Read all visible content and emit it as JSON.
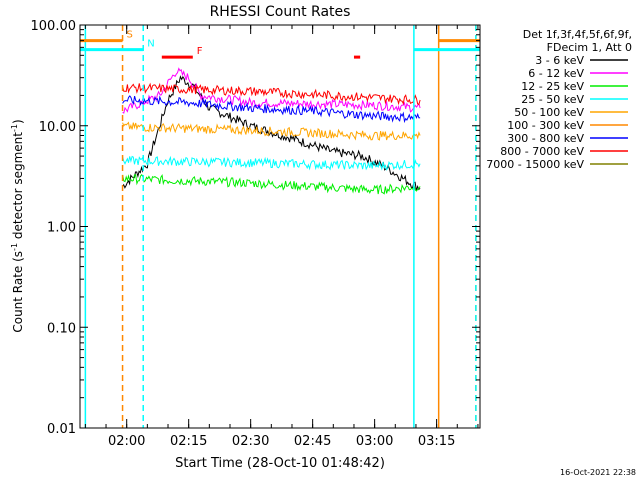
{
  "chart_data": {
    "type": "line",
    "title": "RHESSI Count Rates",
    "xlabel": "Start Time (28-Oct-10 01:48:42)",
    "ylabel_main": "Count Rate (s",
    "ylabel_sup1": "-1",
    "ylabel_mid": " detector segment",
    "ylabel_sup2": "-1",
    "ylabel_end": ")",
    "y_scale": "log",
    "ylim": [
      0.01,
      100
    ],
    "y_ticks": [
      0.01,
      0.1,
      1,
      10,
      100
    ],
    "y_tick_labels": [
      "0.01",
      "0.10",
      "1.00",
      "10.00",
      "100.00"
    ],
    "xlim": [
      "01:48:42",
      "03:25:30"
    ],
    "x_ticks": [
      "02:00",
      "02:15",
      "02:30",
      "02:45",
      "03:00",
      "03:15"
    ],
    "x_tick_labels": [
      "02:00",
      "02:15",
      "02:30",
      "02:45",
      "03:00",
      "03:15"
    ],
    "legend": {
      "placement": "outside-right",
      "header_lines": [
        "Det 1f,3f,4f,5f,6f,9f,",
        "FDecim 1, Att 0"
      ]
    },
    "series": [
      {
        "name": "3 - 6 keV",
        "color": "#000000",
        "values_by_time": [
          [
            "01:59:00",
            2.5
          ],
          [
            "02:05:00",
            4.2
          ],
          [
            "02:10:00",
            18
          ],
          [
            "02:13:00",
            30
          ],
          [
            "02:16:00",
            25
          ],
          [
            "02:20:00",
            15
          ],
          [
            "02:30:00",
            10
          ],
          [
            "02:40:00",
            7.5
          ],
          [
            "02:50:00",
            5.5
          ],
          [
            "02:57:00",
            5.0
          ],
          [
            "03:03:00",
            3.8
          ],
          [
            "03:08:00",
            2.8
          ],
          [
            "03:11:00",
            2.4
          ]
        ]
      },
      {
        "name": "6 - 12 keV",
        "color": "#ff00ff",
        "values_by_time": [
          [
            "01:59:00",
            14
          ],
          [
            "02:08:00",
            20
          ],
          [
            "02:12:00",
            35
          ],
          [
            "02:15:00",
            30
          ],
          [
            "02:18:00",
            20
          ],
          [
            "02:30:00",
            17
          ],
          [
            "03:00:00",
            16
          ],
          [
            "03:11:00",
            15
          ]
        ]
      },
      {
        "name": "12 - 25 keV",
        "color": "#00ee00",
        "values_by_time": [
          [
            "01:59:00",
            3.0
          ],
          [
            "02:30:00",
            2.7
          ],
          [
            "03:00:00",
            2.3
          ],
          [
            "03:11:00",
            2.5
          ]
        ]
      },
      {
        "name": "25 - 50 keV",
        "color": "#00ffff",
        "values_by_time": [
          [
            "01:59:00",
            4.5
          ],
          [
            "02:30:00",
            4.3
          ],
          [
            "03:00:00",
            4.0
          ],
          [
            "03:11:00",
            4.2
          ]
        ]
      },
      {
        "name": "50 - 100 keV",
        "color": "#ffa500",
        "values_by_time": [
          [
            "01:59:00",
            9.8
          ],
          [
            "02:30:00",
            9.0
          ],
          [
            "03:00:00",
            8.0
          ],
          [
            "03:11:00",
            8.0
          ]
        ]
      },
      {
        "name": "100 - 300 keV",
        "color": "#ff8800",
        "values_by_time": []
      },
      {
        "name": "300 - 800 keV",
        "color": "#0000ff",
        "values_by_time": [
          [
            "01:59:00",
            18
          ],
          [
            "02:15:00",
            17
          ],
          [
            "02:30:00",
            15
          ],
          [
            "02:45:00",
            14
          ],
          [
            "03:00:00",
            12.5
          ],
          [
            "03:11:00",
            12
          ]
        ]
      },
      {
        "name": "800 - 7000 keV",
        "color": "#ff0000",
        "values_by_time": [
          [
            "01:59:00",
            24
          ],
          [
            "02:30:00",
            22
          ],
          [
            "03:00:00",
            19
          ],
          [
            "03:11:00",
            18
          ]
        ]
      },
      {
        "name": "7000 - 15000 keV",
        "color": "#808000",
        "values_by_time": []
      }
    ],
    "state_bars": [
      {
        "label": "S",
        "color": "#ff8800",
        "level": 70,
        "segments": [
          [
            "01:48:42",
            "01:59:00"
          ],
          [
            "03:15:30",
            "03:25:30"
          ]
        ]
      },
      {
        "label": "N",
        "color": "#00ffff",
        "level": 57,
        "segments": [
          [
            "01:48:42",
            "02:04:00"
          ],
          [
            "03:09:30",
            "03:25:30"
          ]
        ]
      },
      {
        "label": "F",
        "color": "#ff0000",
        "level": 48,
        "segments": [
          [
            "02:08:30",
            "02:16:00"
          ],
          [
            "02:55:00",
            "02:56:30"
          ]
        ]
      }
    ],
    "vertical_markers": [
      {
        "time": "01:50:00",
        "color": "#00ffff",
        "style": "solid"
      },
      {
        "time": "01:59:00",
        "color": "#ff8800",
        "style": "dashed"
      },
      {
        "time": "02:04:00",
        "color": "#00ffff",
        "style": "dashed"
      },
      {
        "time": "03:09:30",
        "color": "#00ffff",
        "style": "solid"
      },
      {
        "time": "03:15:30",
        "color": "#ff8800",
        "style": "solid"
      },
      {
        "time": "03:24:30",
        "color": "#ff8800",
        "style": "dashed"
      },
      {
        "time": "03:24:30",
        "color": "#00ffff",
        "style": "dashed"
      }
    ]
  },
  "footer_timestamp": "16-Oct-2021 22:38"
}
